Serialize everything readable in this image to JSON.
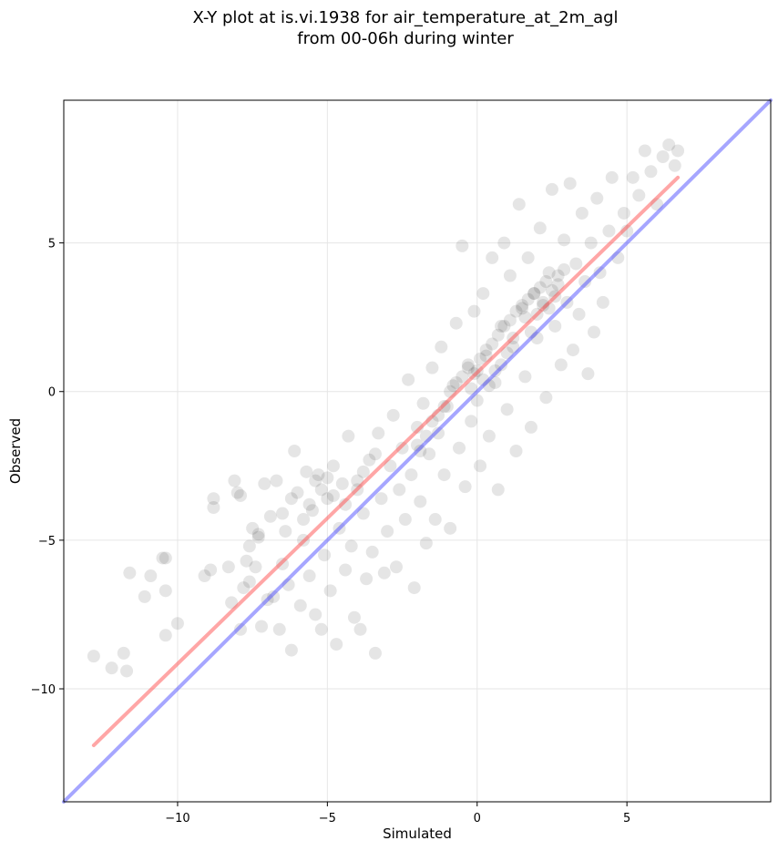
{
  "chart_data": {
    "type": "scatter",
    "title": "X-Y plot at is.vi.1938 for air_temperature_at_2m_agl",
    "subtitle": "from 00-06h during winter",
    "xlabel": "Simulated",
    "ylabel": "Observed",
    "xlim": [
      -13.8,
      9.8
    ],
    "ylim": [
      -13.8,
      9.8
    ],
    "xticks": [
      -10,
      -5,
      0,
      5
    ],
    "yticks": [
      -10,
      -5,
      0,
      5
    ],
    "xtick_labels": [
      "−10",
      "−5",
      "0",
      "5"
    ],
    "ytick_labels": [
      "−10",
      "−5",
      "0",
      "5"
    ],
    "grid": true,
    "point_color": "#000000",
    "point_alpha": 0.1,
    "points": [
      [
        -12.8,
        -8.9
      ],
      [
        -12.2,
        -9.3
      ],
      [
        -11.8,
        -8.8
      ],
      [
        -11.7,
        -9.4
      ],
      [
        -11.6,
        -6.1
      ],
      [
        -11.1,
        -6.9
      ],
      [
        -10.9,
        -6.2
      ],
      [
        -10.5,
        -5.6
      ],
      [
        -10.4,
        -5.6
      ],
      [
        -10.4,
        -6.7
      ],
      [
        -10.4,
        -8.2
      ],
      [
        -10.0,
        -7.8
      ],
      [
        -9.1,
        -6.2
      ],
      [
        -8.9,
        -6.0
      ],
      [
        -8.8,
        -3.6
      ],
      [
        -8.8,
        -3.9
      ],
      [
        -8.2,
        -7.1
      ],
      [
        -8.1,
        -3.0
      ],
      [
        -8.0,
        -3.4
      ],
      [
        -7.9,
        -3.5
      ],
      [
        -7.9,
        -8.0
      ],
      [
        -7.8,
        -6.6
      ],
      [
        -7.7,
        -5.7
      ],
      [
        -7.6,
        -6.4
      ],
      [
        -7.5,
        -4.6
      ],
      [
        -7.4,
        -5.9
      ],
      [
        -7.3,
        -4.9
      ],
      [
        -7.2,
        -7.9
      ],
      [
        -7.1,
        -3.1
      ],
      [
        -7.0,
        -7.0
      ],
      [
        -6.9,
        -4.2
      ],
      [
        -6.8,
        -6.9
      ],
      [
        -6.7,
        -3.0
      ],
      [
        -6.6,
        -8.0
      ],
      [
        -6.5,
        -5.8
      ],
      [
        -6.4,
        -4.7
      ],
      [
        -6.3,
        -6.5
      ],
      [
        -6.2,
        -8.7
      ],
      [
        -6.1,
        -2.0
      ],
      [
        -6.0,
        -3.4
      ],
      [
        -5.9,
        -7.2
      ],
      [
        -5.8,
        -5.0
      ],
      [
        -5.7,
        -2.7
      ],
      [
        -5.6,
        -6.2
      ],
      [
        -5.5,
        -4.0
      ],
      [
        -5.4,
        -7.5
      ],
      [
        -5.3,
        -2.8
      ],
      [
        -5.2,
        -8.0
      ],
      [
        -5.1,
        -5.5
      ],
      [
        -5.0,
        -3.6
      ],
      [
        -4.9,
        -6.7
      ],
      [
        -4.8,
        -2.5
      ],
      [
        -4.7,
        -8.5
      ],
      [
        -4.6,
        -4.6
      ],
      [
        -4.5,
        -3.1
      ],
      [
        -4.4,
        -6.0
      ],
      [
        -4.3,
        -1.5
      ],
      [
        -4.2,
        -5.2
      ],
      [
        -4.1,
        -7.6
      ],
      [
        -4.0,
        -3.0
      ],
      [
        -3.9,
        -8.0
      ],
      [
        -3.8,
        -4.1
      ],
      [
        -3.7,
        -6.3
      ],
      [
        -3.6,
        -2.3
      ],
      [
        -3.5,
        -5.4
      ],
      [
        -3.4,
        -8.8
      ],
      [
        -3.3,
        -1.4
      ],
      [
        -3.2,
        -3.6
      ],
      [
        -3.1,
        -6.1
      ],
      [
        -3.0,
        -4.7
      ],
      [
        -2.9,
        -2.5
      ],
      [
        -2.8,
        -0.8
      ],
      [
        -2.7,
        -5.9
      ],
      [
        -2.6,
        -3.3
      ],
      [
        -2.5,
        -1.9
      ],
      [
        -2.4,
        -4.3
      ],
      [
        -2.3,
        0.4
      ],
      [
        -2.2,
        -2.8
      ],
      [
        -2.1,
        -6.6
      ],
      [
        -2.0,
        -1.2
      ],
      [
        -1.9,
        -3.7
      ],
      [
        -1.8,
        -0.4
      ],
      [
        -1.7,
        -5.1
      ],
      [
        -1.6,
        -2.1
      ],
      [
        -1.5,
        0.8
      ],
      [
        -1.4,
        -4.3
      ],
      [
        -1.3,
        -1.4
      ],
      [
        -1.2,
        1.5
      ],
      [
        -1.1,
        -2.8
      ],
      [
        -1.0,
        -0.5
      ],
      [
        -0.9,
        -4.6
      ],
      [
        -0.8,
        0.2
      ],
      [
        -0.7,
        2.3
      ],
      [
        -0.6,
        -1.9
      ],
      [
        -0.5,
        4.9
      ],
      [
        -0.4,
        -3.2
      ],
      [
        -0.3,
        0.9
      ],
      [
        -0.2,
        -1.0
      ],
      [
        -0.1,
        2.7
      ],
      [
        0.0,
        -0.3
      ],
      [
        0.1,
        -2.5
      ],
      [
        0.2,
        3.3
      ],
      [
        0.3,
        1.2
      ],
      [
        0.4,
        -1.5
      ],
      [
        0.5,
        4.5
      ],
      [
        0.6,
        0.3
      ],
      [
        0.7,
        -3.3
      ],
      [
        0.8,
        2.2
      ],
      [
        0.9,
        5.0
      ],
      [
        1.0,
        -0.6
      ],
      [
        1.1,
        3.9
      ],
      [
        1.2,
        1.5
      ],
      [
        1.3,
        -2.0
      ],
      [
        1.4,
        6.3
      ],
      [
        1.5,
        2.8
      ],
      [
        1.6,
        0.5
      ],
      [
        1.7,
        4.5
      ],
      [
        1.8,
        -1.2
      ],
      [
        1.9,
        3.3
      ],
      [
        2.0,
        1.8
      ],
      [
        2.1,
        5.5
      ],
      [
        2.2,
        2.9
      ],
      [
        2.3,
        -0.2
      ],
      [
        2.4,
        4.0
      ],
      [
        2.5,
        6.8
      ],
      [
        2.6,
        2.2
      ],
      [
        2.7,
        3.6
      ],
      [
        2.8,
        0.9
      ],
      [
        2.9,
        5.1
      ],
      [
        3.0,
        3.0
      ],
      [
        3.1,
        7.0
      ],
      [
        3.2,
        1.4
      ],
      [
        3.3,
        4.3
      ],
      [
        3.4,
        2.6
      ],
      [
        3.5,
        6.0
      ],
      [
        3.6,
        3.7
      ],
      [
        3.7,
        0.6
      ],
      [
        3.8,
        5.0
      ],
      [
        3.9,
        2.0
      ],
      [
        4.0,
        6.5
      ],
      [
        4.1,
        4.0
      ],
      [
        4.2,
        3.0
      ],
      [
        4.4,
        5.4
      ],
      [
        4.5,
        7.2
      ],
      [
        4.7,
        4.5
      ],
      [
        4.9,
        6.0
      ],
      [
        5.0,
        5.4
      ],
      [
        5.2,
        7.2
      ],
      [
        5.4,
        6.6
      ],
      [
        5.6,
        8.1
      ],
      [
        5.8,
        7.4
      ],
      [
        6.0,
        6.3
      ],
      [
        6.2,
        7.9
      ],
      [
        6.4,
        8.3
      ],
      [
        6.6,
        7.6
      ],
      [
        6.7,
        8.1
      ],
      [
        -2.0,
        -1.8
      ],
      [
        -1.9,
        -2.0
      ],
      [
        -1.7,
        -1.5
      ],
      [
        -1.5,
        -1.0
      ],
      [
        -1.3,
        -0.8
      ],
      [
        -1.1,
        -0.5
      ],
      [
        -0.9,
        0.0
      ],
      [
        -0.7,
        0.3
      ],
      [
        -0.5,
        0.5
      ],
      [
        -0.3,
        0.8
      ],
      [
        -0.1,
        0.6
      ],
      [
        0.1,
        1.1
      ],
      [
        0.3,
        1.4
      ],
      [
        0.5,
        1.6
      ],
      [
        0.7,
        1.9
      ],
      [
        0.9,
        2.2
      ],
      [
        1.1,
        2.4
      ],
      [
        1.3,
        2.7
      ],
      [
        1.5,
        2.9
      ],
      [
        1.7,
        3.1
      ],
      [
        1.9,
        3.3
      ],
      [
        2.1,
        3.5
      ],
      [
        2.3,
        3.7
      ],
      [
        2.5,
        3.4
      ],
      [
        2.7,
        3.9
      ],
      [
        2.9,
        4.1
      ],
      [
        1.6,
        2.5
      ],
      [
        1.8,
        2.0
      ],
      [
        2.0,
        2.6
      ],
      [
        2.2,
        3.0
      ],
      [
        2.4,
        2.8
      ],
      [
        2.6,
        3.2
      ],
      [
        1.2,
        1.8
      ],
      [
        1.0,
        1.3
      ],
      [
        0.8,
        0.9
      ],
      [
        0.6,
        0.7
      ],
      [
        0.4,
        0.2
      ],
      [
        0.2,
        0.4
      ],
      [
        0.0,
        0.7
      ],
      [
        -0.2,
        0.1
      ],
      [
        -5.4,
        -3.0
      ],
      [
        -5.2,
        -3.3
      ],
      [
        -5.0,
        -2.9
      ],
      [
        -4.8,
        -3.5
      ],
      [
        -5.6,
        -3.8
      ],
      [
        -6.2,
        -3.6
      ],
      [
        -5.8,
        -4.3
      ],
      [
        -6.5,
        -4.1
      ],
      [
        -7.3,
        -4.8
      ],
      [
        -7.6,
        -5.2
      ],
      [
        -8.3,
        -5.9
      ],
      [
        -4.4,
        -3.8
      ],
      [
        -4.0,
        -3.3
      ],
      [
        -3.8,
        -2.7
      ],
      [
        -3.4,
        -2.1
      ]
    ],
    "series": [
      {
        "kind": "fit-line",
        "color": "#ff4d4d",
        "alpha": 0.5,
        "x": [
          -12.8,
          6.7
        ],
        "y": [
          -11.9,
          7.2
        ]
      },
      {
        "kind": "identity-line",
        "color": "#4d4dff",
        "alpha": 0.5,
        "x": [
          -13.8,
          9.8
        ],
        "y": [
          -13.8,
          9.8
        ]
      }
    ]
  }
}
